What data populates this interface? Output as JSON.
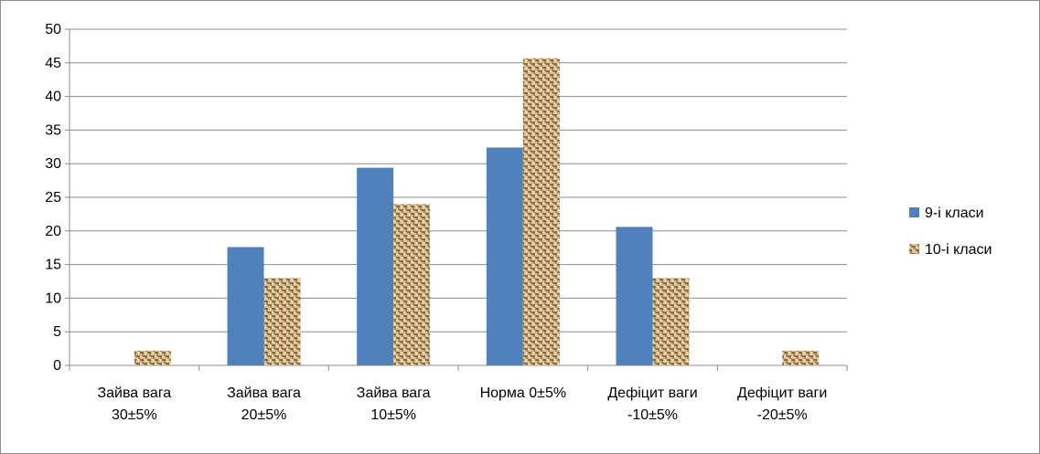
{
  "chart_data": {
    "type": "bar",
    "categories": [
      [
        "Зайва вага",
        "30±5%"
      ],
      [
        "Зайва вага",
        "20±5%"
      ],
      [
        "Зайва вага",
        "10±5%"
      ],
      [
        "Норма 0±5%"
      ],
      [
        "Дефіцит ваги",
        "-10±5%"
      ],
      [
        "Дефіцит ваги",
        "-20±5%"
      ]
    ],
    "series": [
      {
        "name": "9-і класи",
        "values": [
          0,
          17.6,
          29.4,
          32.4,
          20.6,
          0
        ],
        "color": "#4f81bd",
        "fill": "solid"
      },
      {
        "name": "10-і класи",
        "values": [
          2.2,
          13.0,
          24.0,
          45.7,
          13.0,
          2.2
        ],
        "color": "#c7a97a",
        "fill": "burlap-texture"
      }
    ],
    "ylim": [
      0,
      50
    ],
    "yticks": [
      0,
      5,
      10,
      15,
      20,
      25,
      30,
      35,
      40,
      45,
      50
    ],
    "grid": true,
    "legend": "right",
    "title": "",
    "xlabel": "",
    "ylabel": ""
  }
}
